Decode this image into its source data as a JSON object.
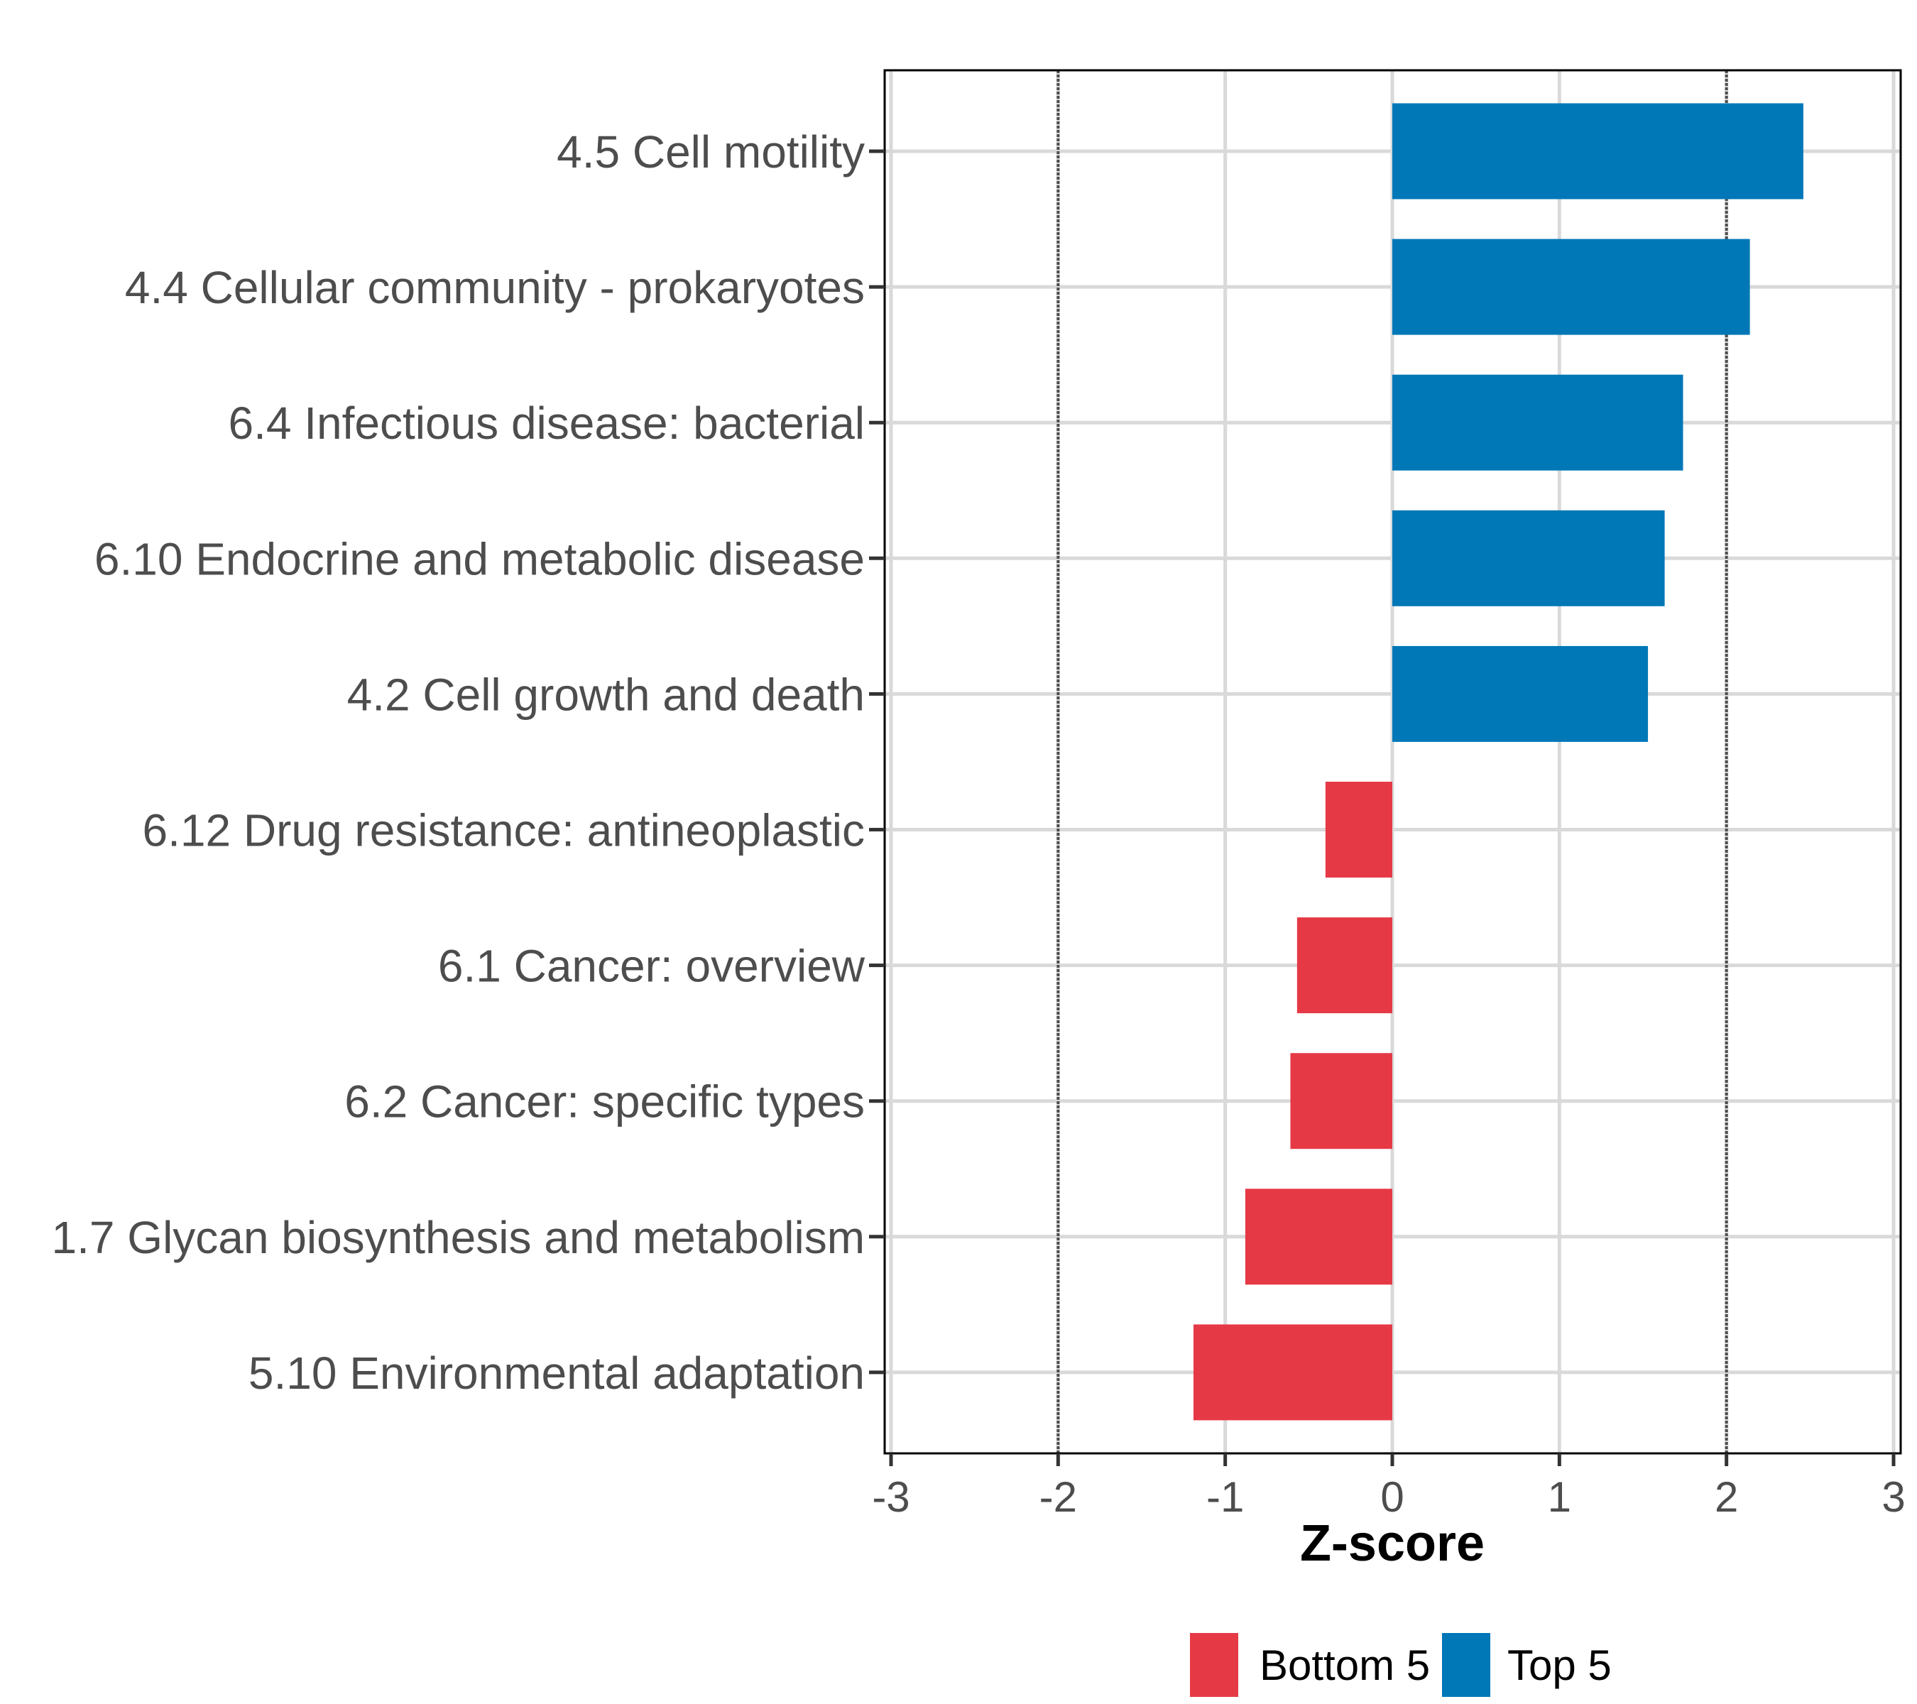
{
  "chart_data": {
    "type": "bar",
    "orientation": "horizontal",
    "title": "",
    "xlabel": "Z-score",
    "ylabel": "",
    "xlim": [
      -3,
      3
    ],
    "xticks": [
      -3,
      -2,
      -1,
      0,
      1,
      2,
      3
    ],
    "xtick_labels": [
      "-3",
      "-2",
      "-1",
      "0",
      "1",
      "2",
      "3"
    ],
    "grid": true,
    "reference_lines": [
      {
        "x": -2,
        "style": "dotted"
      },
      {
        "x": 2,
        "style": "dotted"
      }
    ],
    "categories": [
      "4.5 Cell motility",
      "4.4 Cellular community - prokaryotes",
      "6.4 Infectious disease: bacterial",
      "6.10 Endocrine and metabolic disease",
      "4.2 Cell growth and death",
      "6.12 Drug resistance: antineoplastic",
      "6.1 Cancer: overview",
      "6.2 Cancer: specific types",
      "1.7 Glycan biosynthesis and metabolism",
      "5.10 Environmental adaptation"
    ],
    "values": [
      2.46,
      2.14,
      1.74,
      1.63,
      1.53,
      -0.4,
      -0.57,
      -0.61,
      -0.88,
      -1.19
    ],
    "groups": [
      "Top 5",
      "Top 5",
      "Top 5",
      "Top 5",
      "Top 5",
      "Bottom 5",
      "Bottom 5",
      "Bottom 5",
      "Bottom 5",
      "Bottom 5"
    ],
    "legend": {
      "placement": "bottom",
      "entries": [
        {
          "label": "Bottom 5",
          "color": "#e63946"
        },
        {
          "label": "Top 5",
          "color": "#0077b6"
        }
      ]
    },
    "colors": {
      "Top 5": "#0077b6",
      "Bottom 5": "#e63946",
      "grid": "#d9d9d9",
      "reference_line": "#4d4d4d",
      "axis": "#000000",
      "tick_text": "#4d4d4d"
    }
  }
}
